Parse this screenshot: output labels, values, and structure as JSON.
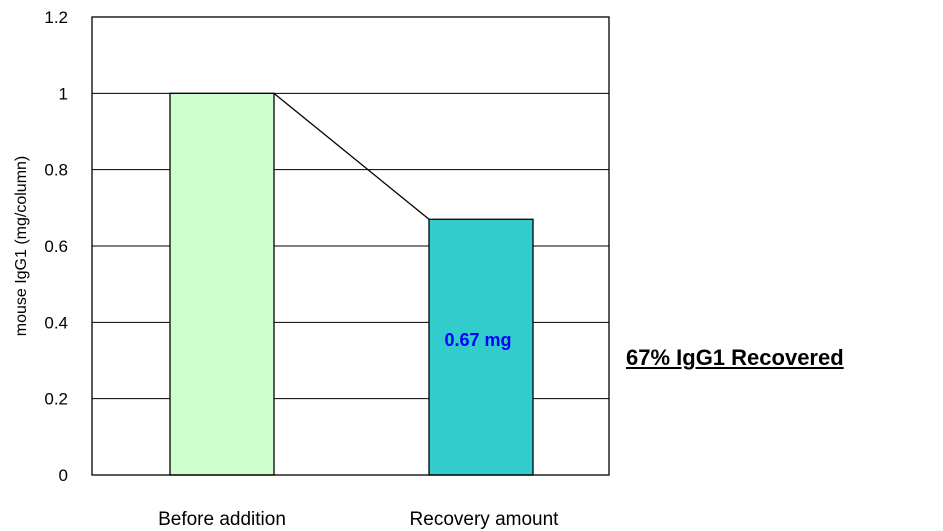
{
  "chart_data": {
    "type": "bar",
    "categories": [
      "Before addition",
      "Recovery amount"
    ],
    "values": [
      1.0,
      0.67
    ],
    "bar_colors": [
      "#ccffcc",
      "#33cccc"
    ],
    "connector_line": true,
    "ylabel": "mouse IgG1 (mg/column)",
    "ylim": [
      0,
      1.2
    ],
    "yticks": [
      0,
      0.2,
      0.4,
      0.6,
      0.8,
      1,
      1.2
    ],
    "ytick_labels": [
      "0",
      "0.2",
      "0.4",
      "0.6",
      "0.8",
      "1",
      "1.2"
    ],
    "grid": true,
    "data_labels": [
      {
        "category": "Recovery amount",
        "text": "0.67 mg",
        "color": "#0000ff"
      }
    ],
    "annotation": "67% IgG1 Recovered"
  }
}
